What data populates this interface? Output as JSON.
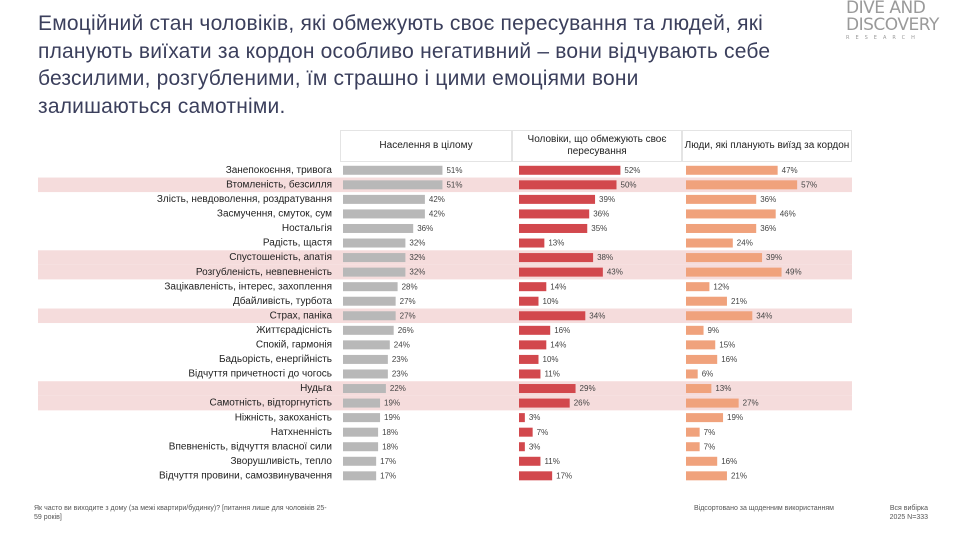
{
  "logo": {
    "line1": "DIVE AND",
    "line2": "DISCOVERY",
    "tagline": "RESEARCH"
  },
  "chart_data": {
    "type": "bar",
    "orientation": "horizontal",
    "title": "Емоційний стан чоловіків, які обмежують своє пересування та людей, які планують виїхати за кордон особливо негативний – вони відчувають себе безсилими, розгубленими, їм страшно і цими емоціями вони залишаються самотніми.",
    "categories": [
      "Занепокоєння, тривога",
      "Втомленість, безсилля",
      "Злість, невдоволення, роздратування",
      "Засмучення, смуток, сум",
      "Ностальгія",
      "Радість, щастя",
      "Спустошеність, апатія",
      "Розгубленість, невпевненість",
      "Зацікавленість, інтерес, захоплення",
      "Дбайливість, турбота",
      "Страх, паніка",
      "Життєрадісність",
      "Спокій, гармонія",
      "Бадьорість, енергійність",
      "Відчуття причетності до чогось",
      "Нудьга",
      "Самотність, відторгнутість",
      "Ніжність, закоханість",
      "Натхненність",
      "Впевненість, відчуття власної сили",
      "Зворушливість, тепло",
      "Відчуття провини, самозвинувачення"
    ],
    "series": [
      {
        "name": "Населення в цілому",
        "color": "#b8b8b8",
        "values": [
          51,
          51,
          42,
          42,
          36,
          32,
          32,
          32,
          28,
          27,
          27,
          26,
          24,
          23,
          23,
          22,
          19,
          19,
          18,
          18,
          17,
          17
        ],
        "value_labels": [
          "51%",
          "51%",
          "42%",
          "42%",
          "36%",
          "32%",
          "32%",
          "32%",
          "28%",
          "27%",
          "27%",
          "26%",
          "24%",
          "23%",
          "23%",
          "22%",
          "19%",
          "19%",
          "18%",
          "18%",
          "17%",
          "17%"
        ]
      },
      {
        "name": "Чоловіки, що обмежують своє пересування",
        "color": "#d2484d",
        "values": [
          52,
          50,
          39,
          36,
          35,
          13,
          38,
          43,
          14,
          10,
          34,
          16,
          14,
          10,
          11,
          29,
          26,
          3,
          7,
          3,
          11,
          17
        ],
        "value_labels": [
          "52%",
          "50%",
          "39%",
          "36%",
          "35%",
          "13%",
          "38%",
          "43%",
          "14%",
          "10%",
          "34%",
          "16%",
          "14%",
          "10%",
          "11%",
          "29%",
          "26%",
          "3%",
          "7%",
          "3%",
          "11%",
          "17%"
        ]
      },
      {
        "name": "Люди, які планують виїзд за кордон",
        "color": "#f0a27c",
        "values": [
          47,
          57,
          36,
          46,
          36,
          24,
          39,
          49,
          12,
          21,
          34,
          9,
          15,
          16,
          6,
          13,
          27,
          19,
          7,
          7,
          16,
          21
        ],
        "value_labels": [
          "47%",
          "57%",
          "36%",
          "46%",
          "36%",
          "24%",
          "39%",
          "49%",
          "12%",
          "21%",
          "34%",
          "9%",
          "15%",
          "16%",
          "6%",
          "13%",
          "27%",
          "19%",
          "7%",
          "7%",
          "16%",
          "21%"
        ]
      }
    ],
    "xlim": [
      0,
      100
    ],
    "highlighted_rows": [
      1,
      6,
      7,
      10,
      15,
      16
    ],
    "highlight_color": "#f5dcdc",
    "footnote": "Як часто ви виходите з дому (за межі квартири/будинку)? [питання лише для чоловіків 25-59 років]",
    "sort_note": "Відсортовано за щоденним використанням",
    "sample_label": "Вся вибірка",
    "sample_size": "2025 N=333"
  }
}
